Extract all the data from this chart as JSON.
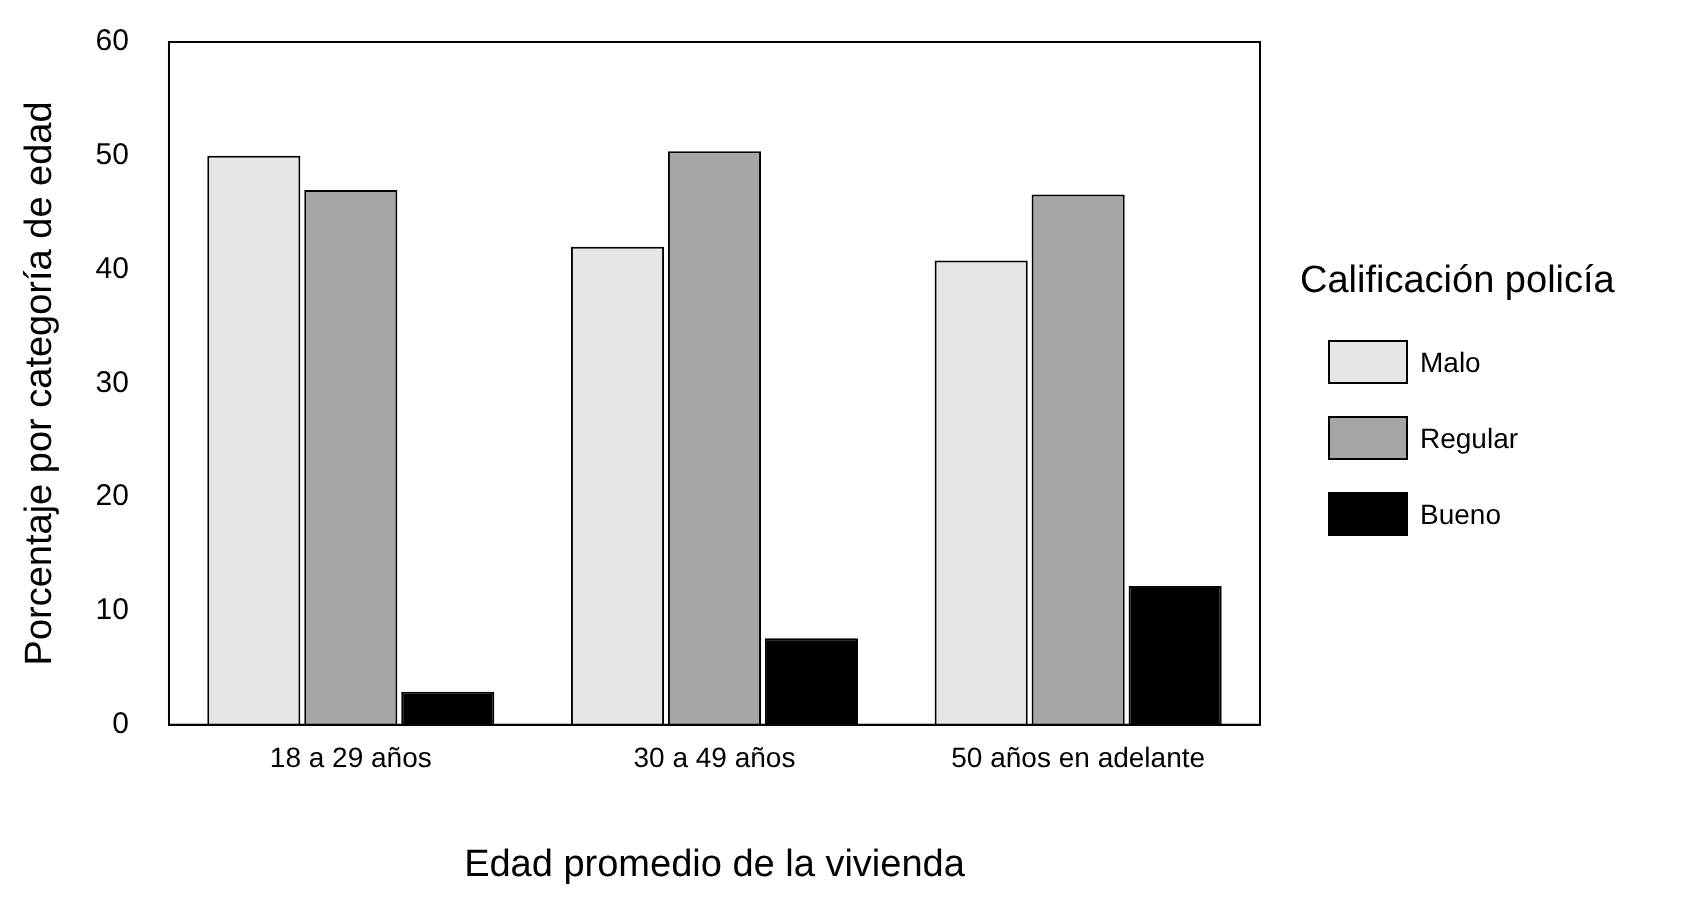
{
  "chart_data": {
    "type": "bar",
    "xlabel": "Edad promedio de la vivienda",
    "ylabel": "Porcentaje por categoría de edad",
    "legend_title": "Calificación policía",
    "categories": [
      "18 a 29 años",
      "30 a 49 años",
      "50 años en adelante"
    ],
    "series": [
      {
        "name": "Malo",
        "color": "#e6e6e6",
        "values": [
          50.0,
          42.0,
          40.8
        ]
      },
      {
        "name": "Regular",
        "color": "#a6a6a6",
        "values": [
          47.0,
          50.4,
          46.6
        ]
      },
      {
        "name": "Bueno",
        "color": "#000000",
        "values": [
          2.9,
          7.6,
          12.2
        ]
      }
    ],
    "ylim": [
      0,
      60
    ],
    "yticks": [
      0,
      10,
      20,
      30,
      40,
      50,
      60
    ],
    "grid": false,
    "legend": "right"
  }
}
